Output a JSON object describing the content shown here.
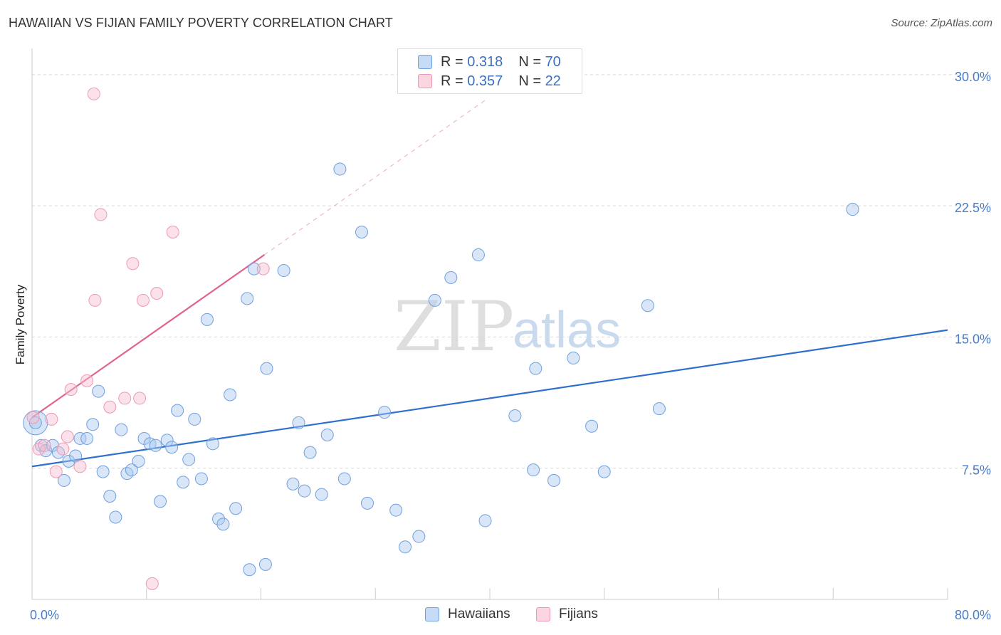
{
  "header": {
    "title": "HAWAIIAN VS FIJIAN FAMILY POVERTY CORRELATION CHART",
    "source": "Source: ZipAtlas.com"
  },
  "watermark": {
    "zip": "ZIP",
    "atlas": "atlas"
  },
  "legend": {
    "rows": [
      {
        "r_label": "R = ",
        "r_value": "0.318",
        "n_label": "N = ",
        "n_value": "70",
        "color": "#a9c8f0"
      },
      {
        "r_label": "R = ",
        "r_value": "0.357",
        "n_label": "N = ",
        "n_value": "22",
        "color": "#f7bfd0"
      }
    ]
  },
  "bottom_legend": [
    {
      "label": "Hawaiians",
      "color": "#a9c8f0"
    },
    {
      "label": "Fijians",
      "color": "#f7bfd0"
    }
  ],
  "chart_data": {
    "type": "scatter",
    "title": "HAWAIIAN VS FIJIAN FAMILY POVERTY CORRELATION CHART",
    "xlabel": "",
    "ylabel": "Family Poverty",
    "xlim": [
      0,
      80
    ],
    "ylim": [
      0,
      31.5
    ],
    "x_tick_labels": [
      {
        "value": 0,
        "label": "0.0%"
      },
      {
        "value": 80,
        "label": "80.0%"
      }
    ],
    "y_tick_labels": [
      {
        "value": 7.5,
        "label": "7.5%"
      },
      {
        "value": 15.0,
        "label": "15.0%"
      },
      {
        "value": 22.5,
        "label": "22.5%"
      },
      {
        "value": 30.0,
        "label": "30.0%"
      }
    ],
    "grid": "horizontal dashed",
    "series": [
      {
        "name": "Hawaiians",
        "color": "#a9c8f0",
        "stroke": "#6fa0df",
        "trend_color": "#2f6fce",
        "trend": {
          "x0": 0,
          "y0": 7.6,
          "x1": 80,
          "y1": 15.4,
          "dashed_to": 80
        },
        "points": [
          [
            0.3,
            10.1
          ],
          [
            0.8,
            8.8
          ],
          [
            1.2,
            8.5
          ],
          [
            1.8,
            8.8
          ],
          [
            2.3,
            8.4
          ],
          [
            2.8,
            6.8
          ],
          [
            3.2,
            7.9
          ],
          [
            3.8,
            8.2
          ],
          [
            4.2,
            9.2
          ],
          [
            4.8,
            9.2
          ],
          [
            5.3,
            10.0
          ],
          [
            5.8,
            11.9
          ],
          [
            6.2,
            7.3
          ],
          [
            6.8,
            5.9
          ],
          [
            7.3,
            4.7
          ],
          [
            7.8,
            9.7
          ],
          [
            8.3,
            7.2
          ],
          [
            8.7,
            7.4
          ],
          [
            9.3,
            7.9
          ],
          [
            9.8,
            9.2
          ],
          [
            10.3,
            8.9
          ],
          [
            10.8,
            8.8
          ],
          [
            11.2,
            5.6
          ],
          [
            11.8,
            9.1
          ],
          [
            12.2,
            8.7
          ],
          [
            12.7,
            10.8
          ],
          [
            13.2,
            6.7
          ],
          [
            13.7,
            8.0
          ],
          [
            14.2,
            10.3
          ],
          [
            14.8,
            6.9
          ],
          [
            15.3,
            16.0
          ],
          [
            15.8,
            8.9
          ],
          [
            16.3,
            4.6
          ],
          [
            16.7,
            4.3
          ],
          [
            17.3,
            11.7
          ],
          [
            17.8,
            5.2
          ],
          [
            18.8,
            17.2
          ],
          [
            19.0,
            1.7
          ],
          [
            19.4,
            18.9
          ],
          [
            20.4,
            2.0
          ],
          [
            20.5,
            13.2
          ],
          [
            22.0,
            18.8
          ],
          [
            22.8,
            6.6
          ],
          [
            23.3,
            10.1
          ],
          [
            23.8,
            6.2
          ],
          [
            24.3,
            8.4
          ],
          [
            25.3,
            6.0
          ],
          [
            25.8,
            9.4
          ],
          [
            26.9,
            24.6
          ],
          [
            27.3,
            6.9
          ],
          [
            28.8,
            21.0
          ],
          [
            29.3,
            5.5
          ],
          [
            30.8,
            10.7
          ],
          [
            31.8,
            5.1
          ],
          [
            32.6,
            3.0
          ],
          [
            33.8,
            3.6
          ],
          [
            35.2,
            17.1
          ],
          [
            36.6,
            18.4
          ],
          [
            39.0,
            19.7
          ],
          [
            39.6,
            4.5
          ],
          [
            42.2,
            10.5
          ],
          [
            43.8,
            7.4
          ],
          [
            44.0,
            13.2
          ],
          [
            45.6,
            6.8
          ],
          [
            47.3,
            13.8
          ],
          [
            48.9,
            9.9
          ],
          [
            50.0,
            7.3
          ],
          [
            53.8,
            16.8
          ],
          [
            54.8,
            10.9
          ],
          [
            71.7,
            22.3
          ]
        ]
      },
      {
        "name": "Fijians",
        "color": "#f7bfd0",
        "stroke": "#ec9ab4",
        "trend_color": "#e0648e",
        "trend": {
          "x0": 0,
          "y0": 10.4,
          "x1": 20.3,
          "y1": 19.7,
          "dashed_to": 39.6
        },
        "points": [
          [
            0.1,
            10.4
          ],
          [
            0.6,
            8.6
          ],
          [
            1.1,
            8.8
          ],
          [
            1.7,
            10.3
          ],
          [
            2.1,
            7.3
          ],
          [
            2.7,
            8.6
          ],
          [
            3.1,
            9.3
          ],
          [
            3.4,
            12.0
          ],
          [
            4.2,
            7.6
          ],
          [
            4.8,
            12.5
          ],
          [
            5.4,
            28.9
          ],
          [
            5.5,
            17.1
          ],
          [
            6.0,
            22.0
          ],
          [
            6.8,
            11.0
          ],
          [
            8.1,
            11.5
          ],
          [
            8.8,
            19.2
          ],
          [
            9.4,
            11.5
          ],
          [
            9.7,
            17.1
          ],
          [
            10.5,
            0.9
          ],
          [
            10.9,
            17.5
          ],
          [
            12.3,
            21.0
          ],
          [
            20.2,
            18.9
          ]
        ]
      }
    ]
  }
}
